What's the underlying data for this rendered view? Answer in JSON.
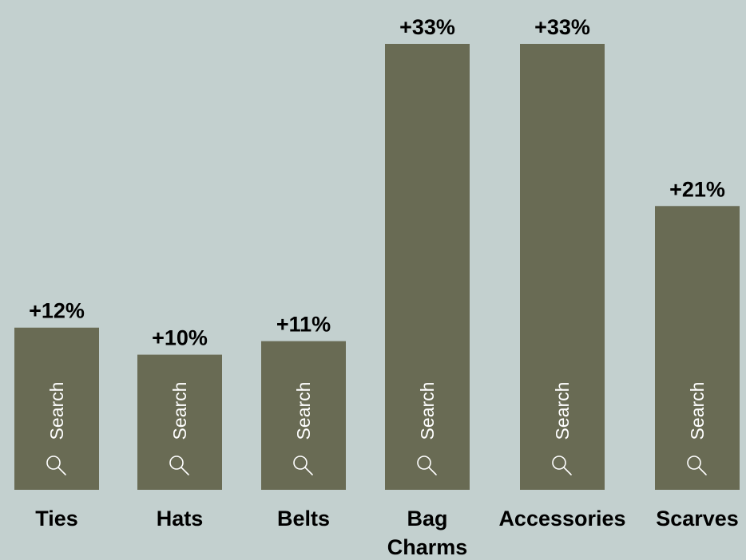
{
  "chart_data": {
    "type": "bar",
    "title": "",
    "xlabel": "",
    "ylabel": "",
    "ylim": [
      0,
      33
    ],
    "grid": false,
    "legend": "none",
    "categories": [
      "Ties",
      "Hats",
      "Belts",
      "Bag Charms",
      "Accessories",
      "Scarves"
    ],
    "category_lines": [
      [
        "Ties"
      ],
      [
        "Hats"
      ],
      [
        "Belts"
      ],
      [
        "Bag",
        "Charms"
      ],
      [
        "Accessories"
      ],
      [
        "Scarves"
      ]
    ],
    "values": [
      12,
      10,
      11,
      33,
      33,
      21
    ],
    "value_labels": [
      "+12%",
      "+10%",
      "+11%",
      "+33%",
      "+33%",
      "+21%"
    ],
    "bar_inner_label": "Search",
    "bar_icon": "search-icon"
  },
  "colors": {
    "background": "#c3d0cf",
    "bar": "#696b54",
    "bar_text": "#ffffff",
    "label_text": "#000000"
  }
}
